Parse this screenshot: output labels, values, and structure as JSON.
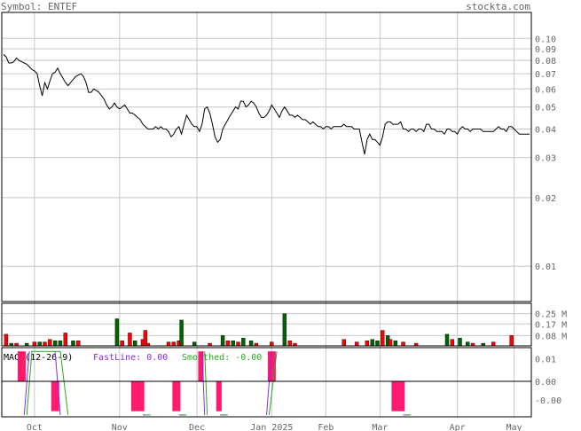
{
  "header": {
    "symbol_text": "Symbol: ENTEF",
    "site": "stockta.com"
  },
  "colors": {
    "label": "#666666",
    "grid": "#c8c8c8",
    "border": "#000000",
    "up_volume": "#006400",
    "down_volume": "#ff0000",
    "macd_hist": "#ff1a6e",
    "fast_line": "#8a2be2",
    "smoothed_line": "#22aa22"
  },
  "chart_data": [
    {
      "type": "line",
      "name": "price",
      "yscale": "log",
      "ylim": [
        0.007,
        0.13
      ],
      "y_ticks": [
        "0.10",
        "0.09",
        "0.08",
        "0.07",
        "0.06",
        "0.05",
        "0.04",
        "0.03",
        "0.02",
        "0.01"
      ],
      "y_tick_values": [
        0.1,
        0.09,
        0.08,
        0.07,
        0.06,
        0.05,
        0.04,
        0.03,
        0.02,
        0.01
      ],
      "x_ticks": [
        "Oct",
        "Nov",
        "Dec",
        "Jan 2025",
        "Feb",
        "Mar",
        "Apr",
        "May"
      ],
      "x_tick_index": [
        12,
        45,
        75,
        104,
        125,
        146,
        176,
        198
      ],
      "values": [
        0.085,
        0.083,
        0.078,
        0.078,
        0.079,
        0.082,
        0.08,
        0.079,
        0.078,
        0.077,
        0.075,
        0.073,
        0.072,
        0.07,
        0.062,
        0.056,
        0.064,
        0.06,
        0.065,
        0.07,
        0.071,
        0.074,
        0.07,
        0.067,
        0.064,
        0.062,
        0.064,
        0.066,
        0.068,
        0.069,
        0.07,
        0.068,
        0.064,
        0.058,
        0.058,
        0.06,
        0.059,
        0.058,
        0.056,
        0.054,
        0.051,
        0.049,
        0.05,
        0.052,
        0.05,
        0.049,
        0.05,
        0.051,
        0.049,
        0.047,
        0.047,
        0.046,
        0.045,
        0.044,
        0.042,
        0.041,
        0.04,
        0.04,
        0.04,
        0.041,
        0.04,
        0.041,
        0.04,
        0.04,
        0.039,
        0.037,
        0.038,
        0.04,
        0.041,
        0.038,
        0.042,
        0.046,
        0.044,
        0.042,
        0.041,
        0.041,
        0.039,
        0.042,
        0.049,
        0.05,
        0.047,
        0.042,
        0.037,
        0.035,
        0.036,
        0.04,
        0.042,
        0.044,
        0.046,
        0.048,
        0.05,
        0.049,
        0.053,
        0.053,
        0.05,
        0.051,
        0.053,
        0.052,
        0.05,
        0.047,
        0.045,
        0.045,
        0.046,
        0.048,
        0.051,
        0.049,
        0.047,
        0.045,
        0.048,
        0.05,
        0.048,
        0.046,
        0.046,
        0.045,
        0.046,
        0.045,
        0.044,
        0.044,
        0.043,
        0.042,
        0.043,
        0.042,
        0.041,
        0.041,
        0.04,
        0.041,
        0.041,
        0.04,
        0.041,
        0.041,
        0.041,
        0.041,
        0.042,
        0.041,
        0.041,
        0.041,
        0.04,
        0.04,
        0.04,
        0.035,
        0.031,
        0.036,
        0.038,
        0.036,
        0.036,
        0.035,
        0.034,
        0.037,
        0.042,
        0.043,
        0.043,
        0.042,
        0.042,
        0.042,
        0.043,
        0.04,
        0.04,
        0.039,
        0.04,
        0.04,
        0.039,
        0.04,
        0.04,
        0.039,
        0.042,
        0.042,
        0.04,
        0.04,
        0.039,
        0.039,
        0.039,
        0.038,
        0.04,
        0.04,
        0.039,
        0.039,
        0.038,
        0.04,
        0.041,
        0.04,
        0.04,
        0.039,
        0.04,
        0.04,
        0.04,
        0.04,
        0.039,
        0.039,
        0.039,
        0.039,
        0.039,
        0.04,
        0.041,
        0.04,
        0.04,
        0.039,
        0.041,
        0.041,
        0.04,
        0.039,
        0.038,
        0.038,
        0.038,
        0.038,
        0.038
      ]
    },
    {
      "type": "bar",
      "name": "volume",
      "y_ticks": [
        "0.25 M",
        "0.17 M",
        "0.08 M"
      ],
      "y_tick_values": [
        0.25,
        0.17,
        0.08
      ],
      "ylim": [
        0,
        0.33
      ],
      "bars": [
        {
          "i": 1,
          "v": 0.09,
          "up": false
        },
        {
          "i": 3,
          "v": 0.02,
          "up": true
        },
        {
          "i": 5,
          "v": 0.02,
          "up": false
        },
        {
          "i": 9,
          "v": 0.02,
          "up": true
        },
        {
          "i": 12,
          "v": 0.03,
          "up": false
        },
        {
          "i": 14,
          "v": 0.03,
          "up": true
        },
        {
          "i": 16,
          "v": 0.03,
          "up": false
        },
        {
          "i": 18,
          "v": 0.05,
          "up": false
        },
        {
          "i": 20,
          "v": 0.04,
          "up": true
        },
        {
          "i": 22,
          "v": 0.04,
          "up": true
        },
        {
          "i": 24,
          "v": 0.1,
          "up": false
        },
        {
          "i": 27,
          "v": 0.04,
          "up": true
        },
        {
          "i": 29,
          "v": 0.04,
          "up": false
        },
        {
          "i": 44,
          "v": 0.21,
          "up": true
        },
        {
          "i": 46,
          "v": 0.04,
          "up": false
        },
        {
          "i": 49,
          "v": 0.1,
          "up": false
        },
        {
          "i": 51,
          "v": 0.04,
          "up": true
        },
        {
          "i": 54,
          "v": 0.05,
          "up": false
        },
        {
          "i": 55,
          "v": 0.12,
          "up": false
        },
        {
          "i": 56,
          "v": 0.02,
          "up": false
        },
        {
          "i": 64,
          "v": 0.03,
          "up": false
        },
        {
          "i": 66,
          "v": 0.03,
          "up": false
        },
        {
          "i": 68,
          "v": 0.04,
          "up": false
        },
        {
          "i": 69,
          "v": 0.2,
          "up": true
        },
        {
          "i": 74,
          "v": 0.03,
          "up": true
        },
        {
          "i": 80,
          "v": 0.02,
          "up": false
        },
        {
          "i": 85,
          "v": 0.08,
          "up": true
        },
        {
          "i": 87,
          "v": 0.04,
          "up": false
        },
        {
          "i": 89,
          "v": 0.04,
          "up": true
        },
        {
          "i": 91,
          "v": 0.03,
          "up": false
        },
        {
          "i": 93,
          "v": 0.06,
          "up": true
        },
        {
          "i": 96,
          "v": 0.04,
          "up": true
        },
        {
          "i": 98,
          "v": 0.02,
          "up": false
        },
        {
          "i": 104,
          "v": 0.03,
          "up": false
        },
        {
          "i": 109,
          "v": 0.25,
          "up": true
        },
        {
          "i": 111,
          "v": 0.04,
          "up": false
        },
        {
          "i": 113,
          "v": 0.02,
          "up": false
        },
        {
          "i": 132,
          "v": 0.05,
          "up": false
        },
        {
          "i": 137,
          "v": 0.03,
          "up": false
        },
        {
          "i": 141,
          "v": 0.04,
          "up": false
        },
        {
          "i": 143,
          "v": 0.05,
          "up": true
        },
        {
          "i": 145,
          "v": 0.04,
          "up": true
        },
        {
          "i": 147,
          "v": 0.12,
          "up": false
        },
        {
          "i": 149,
          "v": 0.08,
          "up": true
        },
        {
          "i": 150,
          "v": 0.05,
          "up": false
        },
        {
          "i": 152,
          "v": 0.04,
          "up": true
        },
        {
          "i": 155,
          "v": 0.03,
          "up": false
        },
        {
          "i": 160,
          "v": 0.02,
          "up": false
        },
        {
          "i": 172,
          "v": 0.09,
          "up": true
        },
        {
          "i": 174,
          "v": 0.05,
          "up": false
        },
        {
          "i": 177,
          "v": 0.06,
          "up": true
        },
        {
          "i": 180,
          "v": 0.03,
          "up": true
        },
        {
          "i": 182,
          "v": 0.02,
          "up": false
        },
        {
          "i": 186,
          "v": 0.02,
          "up": true
        },
        {
          "i": 190,
          "v": 0.03,
          "up": false
        },
        {
          "i": 197,
          "v": 0.08,
          "up": false
        }
      ]
    },
    {
      "type": "bar",
      "name": "macd",
      "legend": {
        "label": "MACD(12-26-9)",
        "fast_label": "FastLine: 0.00",
        "smoothed_label": "Smoothed: -0.00"
      },
      "y_ticks": [
        "0.01",
        "0.00",
        "-0.00"
      ],
      "y_tick_values": [
        0.006,
        0.0,
        -0.005
      ],
      "ylim": [
        -0.0095,
        0.009
      ],
      "hist": [
        {
          "i": 6,
          "v": 0.008
        },
        {
          "i": 7,
          "v": 0.008
        },
        {
          "i": 8,
          "v": 0.008
        },
        {
          "i": 19,
          "v": -0.008
        },
        {
          "i": 20,
          "v": -0.008
        },
        {
          "i": 21,
          "v": -0.008
        },
        {
          "i": 50,
          "v": -0.008
        },
        {
          "i": 51,
          "v": -0.008
        },
        {
          "i": 52,
          "v": -0.008
        },
        {
          "i": 53,
          "v": -0.008
        },
        {
          "i": 54,
          "v": -0.008
        },
        {
          "i": 66,
          "v": -0.008
        },
        {
          "i": 67,
          "v": -0.008
        },
        {
          "i": 68,
          "v": -0.008
        },
        {
          "i": 76,
          "v": 0.008
        },
        {
          "i": 77,
          "v": 0.008
        },
        {
          "i": 83,
          "v": -0.008
        },
        {
          "i": 84,
          "v": -0.008
        },
        {
          "i": 103,
          "v": 0.008
        },
        {
          "i": 104,
          "v": 0.008
        },
        {
          "i": 105,
          "v": 0.008
        },
        {
          "i": 151,
          "v": -0.008
        },
        {
          "i": 152,
          "v": -0.008
        },
        {
          "i": 153,
          "v": -0.008
        },
        {
          "i": 154,
          "v": -0.008
        },
        {
          "i": 155,
          "v": -0.008
        }
      ],
      "fast_segments": [
        [
          [
            8,
            -0.009
          ],
          [
            10,
            0.008
          ]
        ],
        [
          [
            20,
            0.008
          ],
          [
            22,
            -0.009
          ]
        ],
        [
          [
            54,
            -0.009
          ],
          [
            55,
            -0.009
          ]
        ],
        [
          [
            68,
            -0.009
          ],
          [
            70,
            -0.009
          ]
        ],
        [
          [
            77,
            0.008
          ],
          [
            78,
            -0.009
          ]
        ],
        [
          [
            84,
            -0.009
          ],
          [
            86,
            -0.009
          ]
        ],
        [
          [
            102,
            -0.009
          ],
          [
            104,
            0.008
          ]
        ],
        [
          [
            155,
            -0.009
          ],
          [
            157,
            -0.009
          ]
        ]
      ],
      "smoothed_segments": [
        [
          [
            9,
            -0.009
          ],
          [
            11,
            0.008
          ],
          [
            22,
            0.008
          ],
          [
            25,
            -0.009
          ]
        ],
        [
          [
            55,
            -0.009
          ],
          [
            57,
            -0.009
          ]
        ],
        [
          [
            69,
            -0.009
          ],
          [
            71,
            -0.009
          ]
        ],
        [
          [
            78,
            0.008
          ],
          [
            79,
            -0.009
          ]
        ],
        [
          [
            85,
            -0.009
          ],
          [
            87,
            -0.009
          ]
        ],
        [
          [
            103,
            -0.009
          ],
          [
            106,
            0.008
          ]
        ],
        [
          [
            156,
            -0.009
          ],
          [
            158,
            -0.009
          ]
        ]
      ]
    }
  ]
}
